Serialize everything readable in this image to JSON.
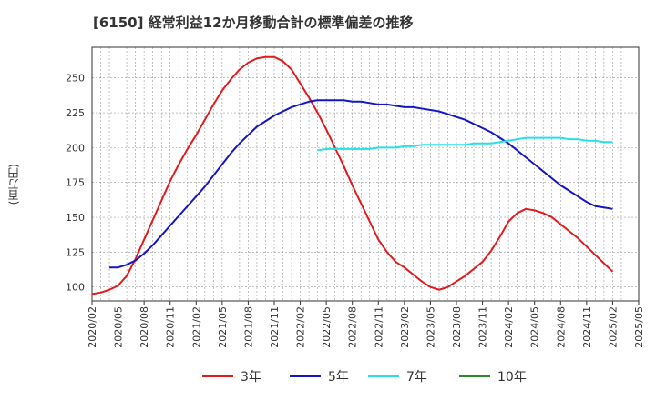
{
  "chart_data": {
    "type": "line",
    "title": "[6150]  経常利益12か月移動合計の標準偏差の推移",
    "ylabel": "(百万円)",
    "xlabel": "",
    "ylim": [
      90,
      272
    ],
    "yticks": [
      100,
      125,
      150,
      175,
      200,
      225,
      250
    ],
    "xlim": [
      "2020-02",
      "2025-05"
    ],
    "xticks": [
      "2020/02",
      "2020/05",
      "2020/08",
      "2020/11",
      "2021/02",
      "2021/05",
      "2021/08",
      "2021/11",
      "2022/02",
      "2022/05",
      "2022/08",
      "2022/11",
      "2023/02",
      "2023/05",
      "2023/08",
      "2023/11",
      "2024/02",
      "2024/05",
      "2024/08",
      "2024/11",
      "2025/02",
      "2025/05"
    ],
    "grid": true,
    "legend_position": "bottom",
    "series": [
      {
        "name": "3年",
        "color": "#e31a1c",
        "points": [
          [
            "2020-02",
            95
          ],
          [
            "2020-03",
            96
          ],
          [
            "2020-04",
            98
          ],
          [
            "2020-05",
            101
          ],
          [
            "2020-06",
            108
          ],
          [
            "2020-07",
            120
          ],
          [
            "2020-08",
            134
          ],
          [
            "2020-09",
            148
          ],
          [
            "2020-10",
            162
          ],
          [
            "2020-11",
            176
          ],
          [
            "2020-12",
            188
          ],
          [
            "2021-01",
            199
          ],
          [
            "2021-02",
            209
          ],
          [
            "2021-03",
            220
          ],
          [
            "2021-04",
            231
          ],
          [
            "2021-05",
            241
          ],
          [
            "2021-06",
            249
          ],
          [
            "2021-07",
            256
          ],
          [
            "2021-08",
            261
          ],
          [
            "2021-09",
            264
          ],
          [
            "2021-10",
            265
          ],
          [
            "2021-11",
            265
          ],
          [
            "2021-12",
            262
          ],
          [
            "2022-01",
            256
          ],
          [
            "2022-02",
            246
          ],
          [
            "2022-03",
            236
          ],
          [
            "2022-04",
            225
          ],
          [
            "2022-05",
            213
          ],
          [
            "2022-06",
            200
          ],
          [
            "2022-07",
            187
          ],
          [
            "2022-08",
            173
          ],
          [
            "2022-09",
            160
          ],
          [
            "2022-10",
            147
          ],
          [
            "2022-11",
            134
          ],
          [
            "2022-12",
            125
          ],
          [
            "2023-01",
            118
          ],
          [
            "2023-02",
            114
          ],
          [
            "2023-03",
            109
          ],
          [
            "2023-04",
            104
          ],
          [
            "2023-05",
            100
          ],
          [
            "2023-06",
            98
          ],
          [
            "2023-07",
            100
          ],
          [
            "2023-08",
            104
          ],
          [
            "2023-09",
            108
          ],
          [
            "2023-10",
            113
          ],
          [
            "2023-11",
            118
          ],
          [
            "2023-12",
            126
          ],
          [
            "2024-01",
            136
          ],
          [
            "2024-02",
            147
          ],
          [
            "2024-03",
            153
          ],
          [
            "2024-04",
            156
          ],
          [
            "2024-05",
            155
          ],
          [
            "2024-06",
            153
          ],
          [
            "2024-07",
            150
          ],
          [
            "2024-08",
            145
          ],
          [
            "2024-09",
            140
          ],
          [
            "2024-10",
            135
          ],
          [
            "2024-11",
            129
          ],
          [
            "2024-12",
            123
          ],
          [
            "2025-01",
            117
          ],
          [
            "2025-02",
            111
          ]
        ]
      },
      {
        "name": "5年",
        "color": "#1515c8",
        "points": [
          [
            "2020-04",
            114
          ],
          [
            "2020-05",
            114
          ],
          [
            "2020-06",
            116
          ],
          [
            "2020-07",
            119
          ],
          [
            "2020-08",
            124
          ],
          [
            "2020-09",
            130
          ],
          [
            "2020-10",
            137
          ],
          [
            "2020-11",
            144
          ],
          [
            "2020-12",
            151
          ],
          [
            "2021-01",
            158
          ],
          [
            "2021-02",
            165
          ],
          [
            "2021-03",
            172
          ],
          [
            "2021-04",
            180
          ],
          [
            "2021-05",
            188
          ],
          [
            "2021-06",
            196
          ],
          [
            "2021-07",
            203
          ],
          [
            "2021-08",
            209
          ],
          [
            "2021-09",
            215
          ],
          [
            "2021-10",
            219
          ],
          [
            "2021-11",
            223
          ],
          [
            "2021-12",
            226
          ],
          [
            "2022-01",
            229
          ],
          [
            "2022-02",
            231
          ],
          [
            "2022-03",
            233
          ],
          [
            "2022-04",
            234
          ],
          [
            "2022-05",
            234
          ],
          [
            "2022-06",
            234
          ],
          [
            "2022-07",
            234
          ],
          [
            "2022-08",
            233
          ],
          [
            "2022-09",
            233
          ],
          [
            "2022-10",
            232
          ],
          [
            "2022-11",
            231
          ],
          [
            "2022-12",
            231
          ],
          [
            "2023-01",
            230
          ],
          [
            "2023-02",
            229
          ],
          [
            "2023-03",
            229
          ],
          [
            "2023-04",
            228
          ],
          [
            "2023-05",
            227
          ],
          [
            "2023-06",
            226
          ],
          [
            "2023-07",
            224
          ],
          [
            "2023-08",
            222
          ],
          [
            "2023-09",
            220
          ],
          [
            "2023-10",
            217
          ],
          [
            "2023-11",
            214
          ],
          [
            "2023-12",
            211
          ],
          [
            "2024-01",
            207
          ],
          [
            "2024-02",
            203
          ],
          [
            "2024-03",
            198
          ],
          [
            "2024-04",
            193
          ],
          [
            "2024-05",
            188
          ],
          [
            "2024-06",
            183
          ],
          [
            "2024-07",
            178
          ],
          [
            "2024-08",
            173
          ],
          [
            "2024-09",
            169
          ],
          [
            "2024-10",
            165
          ],
          [
            "2024-11",
            161
          ],
          [
            "2024-12",
            158
          ],
          [
            "2025-01",
            157
          ],
          [
            "2025-02",
            156
          ]
        ]
      },
      {
        "name": "7年",
        "color": "#26e0e8",
        "points": [
          [
            "2022-04",
            198
          ],
          [
            "2022-05",
            199
          ],
          [
            "2022-06",
            199
          ],
          [
            "2022-07",
            199
          ],
          [
            "2022-08",
            199
          ],
          [
            "2022-09",
            199
          ],
          [
            "2022-10",
            199
          ],
          [
            "2022-11",
            200
          ],
          [
            "2022-12",
            200
          ],
          [
            "2023-01",
            200
          ],
          [
            "2023-02",
            201
          ],
          [
            "2023-03",
            201
          ],
          [
            "2023-04",
            202
          ],
          [
            "2023-05",
            202
          ],
          [
            "2023-06",
            202
          ],
          [
            "2023-07",
            202
          ],
          [
            "2023-08",
            202
          ],
          [
            "2023-09",
            202
          ],
          [
            "2023-10",
            203
          ],
          [
            "2023-11",
            203
          ],
          [
            "2023-12",
            203
          ],
          [
            "2024-01",
            204
          ],
          [
            "2024-02",
            205
          ],
          [
            "2024-03",
            206
          ],
          [
            "2024-04",
            207
          ],
          [
            "2024-05",
            207
          ],
          [
            "2024-06",
            207
          ],
          [
            "2024-07",
            207
          ],
          [
            "2024-08",
            207
          ],
          [
            "2024-09",
            206
          ],
          [
            "2024-10",
            206
          ],
          [
            "2024-11",
            205
          ],
          [
            "2024-12",
            205
          ],
          [
            "2025-01",
            204
          ],
          [
            "2025-02",
            204
          ]
        ]
      },
      {
        "name": "10年",
        "color": "#2a8a2a",
        "points": []
      }
    ]
  }
}
